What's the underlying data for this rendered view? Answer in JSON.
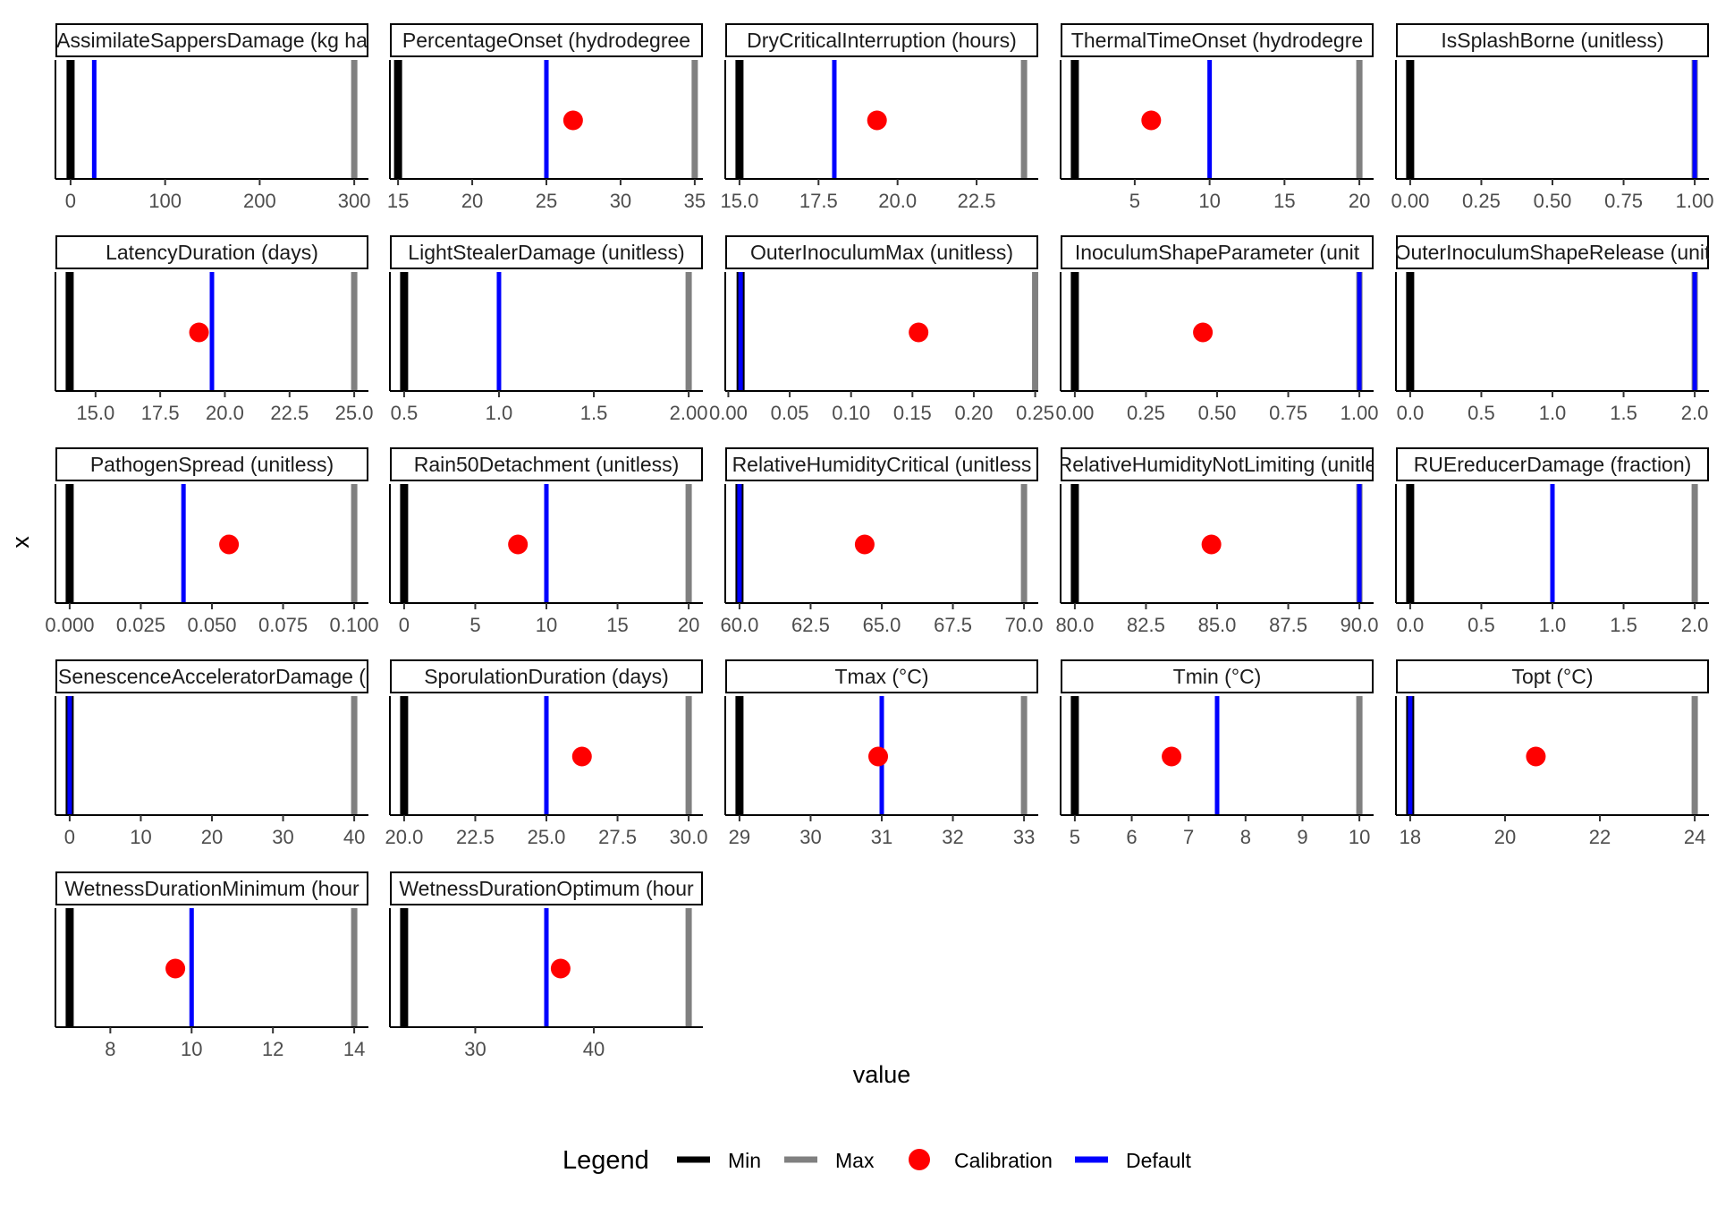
{
  "chart_data": {
    "type": "faceted_parameter_ranges",
    "xlabel": "value",
    "ylabel": "x",
    "legend": {
      "title": "Legend",
      "position": "bottom",
      "items": [
        {
          "label": "Min",
          "color": "#000000",
          "glyph": "line"
        },
        {
          "label": "Max",
          "color": "#808080",
          "glyph": "line"
        },
        {
          "label": "Calibration",
          "color": "#ff0000",
          "glyph": "point"
        },
        {
          "label": "Default",
          "color": "#0000ff",
          "glyph": "line"
        }
      ]
    },
    "panels": [
      {
        "title": "AssimilateSappersDamage (kg ha",
        "xlim": [
          -16,
          315
        ],
        "ticks": [
          0,
          100,
          200,
          300
        ],
        "tick_labels": [
          "0",
          "100",
          "200",
          "300"
        ],
        "min": 0,
        "max": 300,
        "default": 25,
        "calibration": null
      },
      {
        "title": "PercentageOnset (hydrodegree",
        "xlim": [
          14.45,
          35.55
        ],
        "ticks": [
          15,
          20,
          25,
          30,
          35
        ],
        "tick_labels": [
          "15",
          "20",
          "25",
          "30",
          "35"
        ],
        "min": 15,
        "max": 35,
        "default": 25,
        "calibration": 26.8
      },
      {
        "title": "DryCriticalInterruption (hours)",
        "xlim": [
          14.55,
          24.45
        ],
        "ticks": [
          15,
          17.5,
          20,
          22.5
        ],
        "tick_labels": [
          "15.0",
          "17.5",
          "20.0",
          "22.5"
        ],
        "min": 15,
        "max": 24,
        "default": 18,
        "calibration": 19.35
      },
      {
        "title": "ThermalTimeOnset (hydrodegre",
        "xlim": [
          0.05,
          20.95
        ],
        "ticks": [
          5,
          10,
          15,
          20
        ],
        "tick_labels": [
          "5",
          "10",
          "15",
          "20"
        ],
        "min": 1,
        "max": 20,
        "default": 10,
        "calibration": 6.1
      },
      {
        "title": "IsSplashBorne (unitless)",
        "xlim": [
          -0.05,
          1.05
        ],
        "ticks": [
          0,
          0.25,
          0.5,
          0.75,
          1
        ],
        "tick_labels": [
          "0.00",
          "0.25",
          "0.50",
          "0.75",
          "1.00"
        ],
        "min": 0,
        "max": 1,
        "default": 1,
        "calibration": null
      },
      {
        "title": "LatencyDuration (days)",
        "xlim": [
          13.45,
          25.55
        ],
        "ticks": [
          15,
          17.5,
          20,
          22.5,
          25
        ],
        "tick_labels": [
          "15.0",
          "17.5",
          "20.0",
          "22.5",
          "25.0"
        ],
        "min": 14,
        "max": 25,
        "default": 19.5,
        "calibration": 19.0
      },
      {
        "title": "LightStealerDamage (unitless)",
        "xlim": [
          0.425,
          2.075
        ],
        "ticks": [
          0.5,
          1,
          1.5,
          2
        ],
        "tick_labels": [
          "0.5",
          "1.0",
          "1.5",
          "2.00"
        ],
        "min": 0.5,
        "max": 2,
        "default": 1,
        "calibration": null
      },
      {
        "title": "OuterInoculumMax (unitless)",
        "xlim": [
          -0.0025,
          0.2525
        ],
        "ticks": [
          0,
          0.05,
          0.1,
          0.15,
          0.2,
          0.25
        ],
        "tick_labels": [
          "0.00",
          "0.05",
          "0.10",
          "0.15",
          "0.20",
          "0.25"
        ],
        "min": 0.01,
        "max": 0.25,
        "default": 0.01,
        "calibration": 0.155
      },
      {
        "title": "InoculumShapeParameter (unit",
        "xlim": [
          -0.05,
          1.05
        ],
        "ticks": [
          0,
          0.25,
          0.5,
          0.75,
          1
        ],
        "tick_labels": [
          "0.00",
          "0.25",
          "0.50",
          "0.75",
          "1.00"
        ],
        "min": 0,
        "max": 1,
        "default": 1,
        "calibration": 0.45
      },
      {
        "title": "OuterInoculumShapeRelease (unit",
        "xlim": [
          -0.1,
          2.1
        ],
        "ticks": [
          0,
          0.5,
          1,
          1.5,
          2
        ],
        "tick_labels": [
          "0.0",
          "0.5",
          "1.0",
          "1.5",
          "2.0"
        ],
        "min": 0,
        "max": 2,
        "default": 2,
        "calibration": null
      },
      {
        "title": "PathogenSpread (unitless)",
        "xlim": [
          -0.005,
          0.105
        ],
        "ticks": [
          0,
          0.025,
          0.05,
          0.075,
          0.1
        ],
        "tick_labels": [
          "0.000",
          "0.025",
          "0.050",
          "0.075",
          "0.100"
        ],
        "min": 0,
        "max": 0.1,
        "default": 0.04,
        "calibration": 0.056
      },
      {
        "title": "Rain50Detachment (unitless)",
        "xlim": [
          -1,
          21
        ],
        "ticks": [
          0,
          5,
          10,
          15,
          20
        ],
        "tick_labels": [
          "0",
          "5",
          "10",
          "15",
          "20"
        ],
        "min": 0,
        "max": 20,
        "default": 10,
        "calibration": 8
      },
      {
        "title": "RelativeHumidityCritical (unitless",
        "xlim": [
          59.5,
          70.5
        ],
        "ticks": [
          60,
          62.5,
          65,
          67.5,
          70
        ],
        "tick_labels": [
          "60.0",
          "62.5",
          "65.0",
          "67.5",
          "70.0"
        ],
        "min": 60,
        "max": 70,
        "default": 60,
        "calibration": 64.4
      },
      {
        "title": "RelativeHumidityNotLimiting (unitle",
        "xlim": [
          79.5,
          90.5
        ],
        "ticks": [
          80,
          82.5,
          85,
          87.5,
          90
        ],
        "tick_labels": [
          "80.0",
          "82.5",
          "85.0",
          "87.5",
          "90.0"
        ],
        "min": 80,
        "max": 90,
        "default": 90,
        "calibration": 84.8
      },
      {
        "title": "RUEreducerDamage (fraction)",
        "xlim": [
          -0.1,
          2.1
        ],
        "ticks": [
          0,
          0.5,
          1,
          1.5,
          2
        ],
        "tick_labels": [
          "0.0",
          "0.5",
          "1.0",
          "1.5",
          "2.0"
        ],
        "min": 0,
        "max": 2,
        "default": 1,
        "calibration": null
      },
      {
        "title": "SenescenceAcceleratorDamage (",
        "xlim": [
          -2,
          42
        ],
        "ticks": [
          0,
          10,
          20,
          30,
          40
        ],
        "tick_labels": [
          "0",
          "10",
          "20",
          "30",
          "40"
        ],
        "min": 0,
        "max": 40,
        "default": 0,
        "calibration": null
      },
      {
        "title": "SporulationDuration (days)",
        "xlim": [
          19.5,
          30.5
        ],
        "ticks": [
          20,
          22.5,
          25,
          27.5,
          30
        ],
        "tick_labels": [
          "20.0",
          "22.5",
          "25.0",
          "27.5",
          "30.0"
        ],
        "min": 20,
        "max": 30,
        "default": 25,
        "calibration": 26.25
      },
      {
        "title": "Tmax (°C)",
        "xlim": [
          28.8,
          33.2
        ],
        "ticks": [
          29,
          30,
          31,
          32,
          33
        ],
        "tick_labels": [
          "29",
          "30",
          "31",
          "32",
          "33"
        ],
        "min": 29,
        "max": 33,
        "default": 31,
        "calibration": 30.95
      },
      {
        "title": "Tmin (°C)",
        "xlim": [
          4.75,
          10.25
        ],
        "ticks": [
          5,
          6,
          7,
          8,
          9,
          10
        ],
        "tick_labels": [
          "5",
          "6",
          "7",
          "8",
          "9",
          "10"
        ],
        "min": 5,
        "max": 10,
        "default": 7.5,
        "calibration": 6.7
      },
      {
        "title": "Topt (°C)",
        "xlim": [
          17.7,
          24.3
        ],
        "ticks": [
          18,
          20,
          22,
          24
        ],
        "tick_labels": [
          "18",
          "20",
          "22",
          "24"
        ],
        "min": 18,
        "max": 24,
        "default": 18,
        "calibration": 20.65
      },
      {
        "title": "WetnessDurationMinimum (hour",
        "xlim": [
          6.65,
          14.35
        ],
        "ticks": [
          8,
          10,
          12,
          14
        ],
        "tick_labels": [
          "8",
          "10",
          "12",
          "14"
        ],
        "min": 7,
        "max": 14,
        "default": 10,
        "calibration": 9.6
      },
      {
        "title": "WetnessDurationOptimum (hour",
        "xlim": [
          22.8,
          49.2
        ],
        "ticks": [
          30,
          40
        ],
        "tick_labels": [
          "30",
          "40"
        ],
        "min": 24,
        "max": 48,
        "default": 36,
        "calibration": 37.2
      }
    ]
  }
}
